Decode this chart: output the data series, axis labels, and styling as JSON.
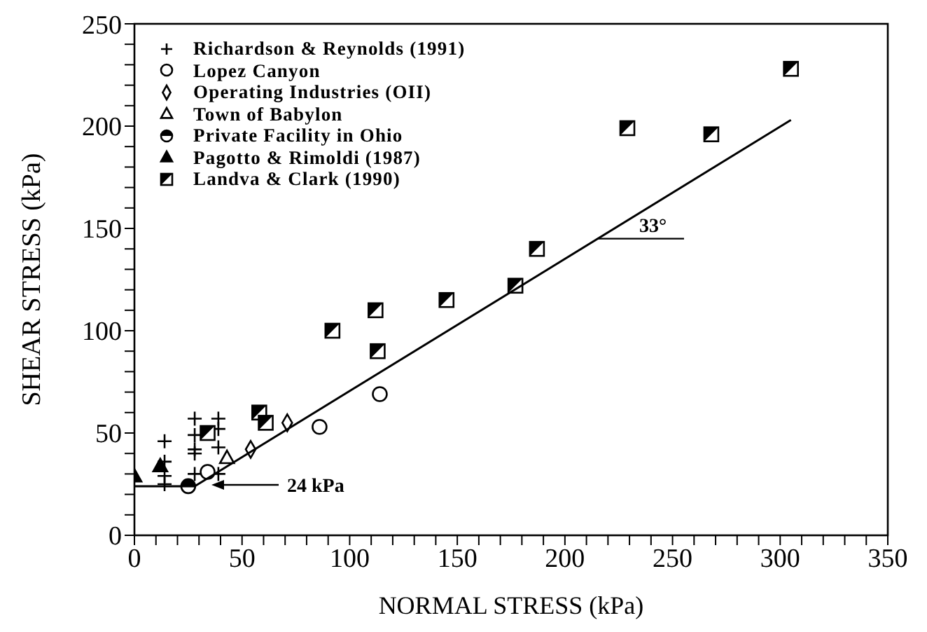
{
  "chart_data": {
    "type": "scatter",
    "xlabel": "NORMAL STRESS (kPa)",
    "ylabel": "SHEAR STRESS (kPa)",
    "xlim": [
      0,
      350
    ],
    "ylim": [
      0,
      250
    ],
    "xticks": [
      0,
      {
        "value": 10,
        "label": null
      },
      {
        "value": 20,
        "label": null
      },
      {
        "value": 30,
        "label": null
      },
      {
        "value": 40,
        "label": null
      },
      50,
      {
        "value": 60,
        "label": null
      },
      {
        "value": 70,
        "label": null
      },
      {
        "value": 80,
        "label": null
      },
      {
        "value": 90,
        "label": null
      },
      100,
      {
        "value": 110,
        "label": null
      },
      {
        "value": 120,
        "label": null
      },
      {
        "value": 130,
        "label": null
      },
      {
        "value": 140,
        "label": null
      },
      150,
      {
        "value": 160,
        "label": null
      },
      {
        "value": 170,
        "label": null
      },
      {
        "value": 180,
        "label": null
      },
      {
        "value": 190,
        "label": null
      },
      200,
      {
        "value": 210,
        "label": null
      },
      {
        "value": 220,
        "label": null
      },
      {
        "value": 230,
        "label": null
      },
      {
        "value": 240,
        "label": null
      },
      250,
      {
        "value": 260,
        "label": null
      },
      {
        "value": 270,
        "label": null
      },
      {
        "value": 280,
        "label": null
      },
      {
        "value": 290,
        "label": null
      },
      300,
      {
        "value": 310,
        "label": null
      },
      {
        "value": 320,
        "label": null
      },
      {
        "value": 330,
        "label": null
      },
      {
        "value": 340,
        "label": null
      },
      350
    ],
    "yticks": [
      0,
      {
        "value": 10,
        "label": null
      },
      {
        "value": 20,
        "label": null
      },
      {
        "value": 30,
        "label": null
      },
      {
        "value": 40,
        "label": null
      },
      50,
      {
        "value": 60,
        "label": null
      },
      {
        "value": 70,
        "label": null
      },
      {
        "value": 80,
        "label": null
      },
      {
        "value": 90,
        "label": null
      },
      100,
      {
        "value": 110,
        "label": null
      },
      {
        "value": 120,
        "label": null
      },
      {
        "value": 130,
        "label": null
      },
      {
        "value": 140,
        "label": null
      },
      150,
      {
        "value": 160,
        "label": null
      },
      {
        "value": 170,
        "label": null
      },
      {
        "value": 180,
        "label": null
      },
      {
        "value": 190,
        "label": null
      },
      200,
      {
        "value": 210,
        "label": null
      },
      {
        "value": 220,
        "label": null
      },
      {
        "value": 230,
        "label": null
      },
      {
        "value": 240,
        "label": null
      },
      250
    ],
    "legend": "top left",
    "series": [
      {
        "name": "Richardson & Reynolds (1991)",
        "color": "#000000",
        "marker": "cross",
        "x": [
          14,
          14,
          14,
          14,
          28,
          28,
          28,
          28,
          28,
          39,
          39,
          39,
          39
        ],
        "values": [
          46,
          36,
          29,
          25,
          57,
          49,
          42,
          40,
          30,
          57,
          52,
          43,
          30
        ]
      },
      {
        "name": "Lopez Canyon",
        "color": "#000000",
        "marker": "circle",
        "x": [
          114,
          86,
          34
        ],
        "values": [
          69,
          53,
          31
        ]
      },
      {
        "name": "Operating Industries (OII)",
        "color": "#000000",
        "marker": "diamond",
        "x": [
          71,
          54
        ],
        "values": [
          55,
          42
        ]
      },
      {
        "name": "Town of Babylon",
        "color": "#000000",
        "marker": "triangle",
        "x": [
          43
        ],
        "values": [
          38
        ]
      },
      {
        "name": "Private Facility in Ohio",
        "color": "#000000",
        "marker": "circle",
        "x": [
          25
        ],
        "values": [
          24
        ]
      },
      {
        "name": "Pagotto & Rimoldi (1987)",
        "color": "#000000",
        "marker": "triangle",
        "x": [
          0,
          12
        ],
        "values": [
          29,
          34
        ]
      },
      {
        "name": "Landva & Clark (1990)",
        "color": "#000000",
        "marker": "square",
        "x": [
          92,
          112,
          113,
          145,
          177,
          187,
          229,
          268,
          305,
          58,
          61,
          34
        ],
        "values": [
          100,
          110,
          90,
          115,
          122,
          140,
          199,
          196,
          228,
          60,
          55,
          50
        ]
      },
      {
        "type": "line",
        "color": "#000000",
        "marker": "none",
        "line_style": "solid",
        "x": [
          0,
          28,
          305
        ],
        "values": [
          24,
          24,
          203
        ]
      }
    ],
    "annotations": [
      "24 kPa",
      {
        "text": "33°",
        "x": 215,
        "y": 145
      }
    ]
  }
}
